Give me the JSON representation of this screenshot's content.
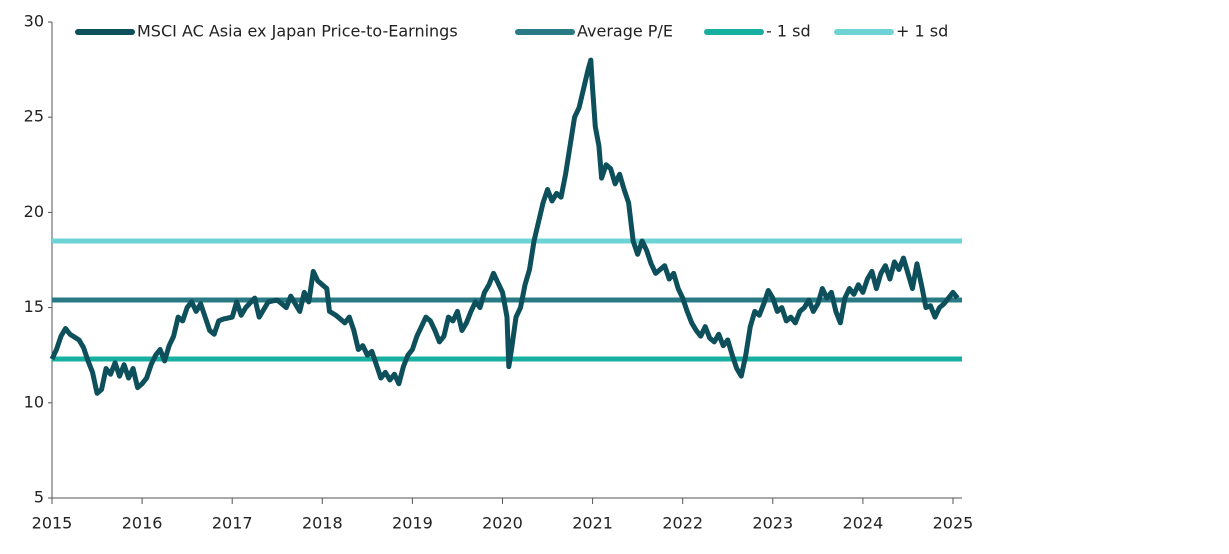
{
  "chart_data": {
    "type": "line",
    "xlim": [
      2015,
      2025.1
    ],
    "xticks": [
      2015,
      2016,
      2017,
      2018,
      2019,
      2020,
      2021,
      2022,
      2023,
      2024,
      2025
    ],
    "ylim": [
      5,
      30
    ],
    "yticks": [
      5,
      10,
      15,
      20,
      25,
      30
    ],
    "grid": false,
    "series": [
      {
        "name": "MSCI AC Asia ex Japan Price-to-Earnings",
        "color": "#0d4f5a",
        "x": [
          2015.0,
          2015.05,
          2015.1,
          2015.15,
          2015.2,
          2015.3,
          2015.35,
          2015.4,
          2015.45,
          2015.5,
          2015.55,
          2015.6,
          2015.65,
          2015.7,
          2015.75,
          2015.8,
          2015.85,
          2015.9,
          2015.95,
          2016.0,
          2016.05,
          2016.1,
          2016.15,
          2016.2,
          2016.25,
          2016.3,
          2016.35,
          2016.4,
          2016.45,
          2016.5,
          2016.55,
          2016.6,
          2016.65,
          2016.7,
          2016.75,
          2016.8,
          2016.85,
          2016.9,
          2017.0,
          2017.05,
          2017.1,
          2017.15,
          2017.25,
          2017.3,
          2017.4,
          2017.5,
          2017.6,
          2017.65,
          2017.7,
          2017.75,
          2017.8,
          2017.85,
          2017.9,
          2017.95,
          2018.05,
          2018.08,
          2018.15,
          2018.25,
          2018.3,
          2018.35,
          2018.4,
          2018.45,
          2018.5,
          2018.55,
          2018.6,
          2018.65,
          2018.7,
          2018.75,
          2018.8,
          2018.85,
          2018.9,
          2018.95,
          2019.0,
          2019.05,
          2019.1,
          2019.15,
          2019.2,
          2019.25,
          2019.3,
          2019.35,
          2019.4,
          2019.45,
          2019.5,
          2019.55,
          2019.6,
          2019.65,
          2019.7,
          2019.75,
          2019.8,
          2019.85,
          2019.9,
          2019.95,
          2020.0,
          2020.05,
          2020.07,
          2020.1,
          2020.15,
          2020.2,
          2020.25,
          2020.3,
          2020.35,
          2020.4,
          2020.45,
          2020.5,
          2020.55,
          2020.6,
          2020.65,
          2020.7,
          2020.75,
          2020.8,
          2020.85,
          2020.9,
          2020.95,
          2020.98,
          2021.0,
          2021.03,
          2021.07,
          2021.1,
          2021.15,
          2021.2,
          2021.25,
          2021.3,
          2021.35,
          2021.4,
          2021.45,
          2021.5,
          2021.55,
          2021.6,
          2021.65,
          2021.7,
          2021.75,
          2021.8,
          2021.85,
          2021.9,
          2021.95,
          2022.0,
          2022.05,
          2022.1,
          2022.15,
          2022.2,
          2022.25,
          2022.3,
          2022.35,
          2022.4,
          2022.45,
          2022.5,
          2022.55,
          2022.6,
          2022.65,
          2022.7,
          2022.75,
          2022.8,
          2022.85,
          2022.9,
          2022.95,
          2023.0,
          2023.05,
          2023.1,
          2023.15,
          2023.2,
          2023.25,
          2023.3,
          2023.35,
          2023.4,
          2023.45,
          2023.5,
          2023.55,
          2023.6,
          2023.65,
          2023.7,
          2023.75,
          2023.8,
          2023.85,
          2023.9,
          2023.95,
          2024.0,
          2024.05,
          2024.1,
          2024.15,
          2024.2,
          2024.25,
          2024.3,
          2024.35,
          2024.4,
          2024.45,
          2024.5,
          2024.55,
          2024.6,
          2024.65,
          2024.7,
          2024.75,
          2024.8,
          2024.85,
          2024.9,
          2024.95,
          2025.0,
          2025.05
        ],
        "values": [
          12.3,
          12.8,
          13.5,
          13.9,
          13.6,
          13.3,
          12.9,
          12.2,
          11.6,
          10.5,
          10.7,
          11.8,
          11.5,
          12.1,
          11.4,
          12.0,
          11.3,
          11.8,
          10.8,
          11.0,
          11.3,
          12.0,
          12.5,
          12.8,
          12.2,
          13.0,
          13.5,
          14.5,
          14.3,
          15.0,
          15.3,
          14.8,
          15.2,
          14.5,
          13.8,
          13.6,
          14.3,
          14.4,
          14.5,
          15.3,
          14.6,
          15.0,
          15.5,
          14.5,
          15.3,
          15.4,
          15.0,
          15.6,
          15.2,
          14.8,
          15.8,
          15.3,
          16.9,
          16.4,
          16.0,
          14.8,
          14.6,
          14.2,
          14.5,
          13.8,
          12.8,
          13.0,
          12.5,
          12.7,
          12.0,
          11.3,
          11.6,
          11.2,
          11.5,
          11.0,
          11.9,
          12.5,
          12.8,
          13.5,
          14.0,
          14.5,
          14.3,
          13.8,
          13.2,
          13.5,
          14.5,
          14.3,
          14.8,
          13.8,
          14.2,
          14.8,
          15.3,
          15.0,
          15.8,
          16.2,
          16.8,
          16.3,
          15.8,
          14.5,
          11.9,
          12.8,
          14.5,
          15.0,
          16.2,
          17.0,
          18.5,
          19.5,
          20.5,
          21.2,
          20.6,
          21.0,
          20.8,
          22.0,
          23.5,
          25.0,
          25.5,
          26.5,
          27.5,
          28.0,
          26.5,
          24.5,
          23.5,
          21.8,
          22.5,
          22.3,
          21.5,
          22.0,
          21.2,
          20.5,
          18.5,
          17.8,
          18.5,
          18.0,
          17.3,
          16.8,
          17.0,
          17.2,
          16.5,
          16.8,
          16.0,
          15.5,
          14.8,
          14.2,
          13.8,
          13.5,
          14.0,
          13.4,
          13.2,
          13.6,
          13.0,
          13.3,
          12.5,
          11.8,
          11.4,
          12.5,
          14.0,
          14.8,
          14.6,
          15.2,
          15.9,
          15.5,
          14.8,
          15.0,
          14.3,
          14.5,
          14.2,
          14.8,
          15.0,
          15.4,
          14.8,
          15.2,
          16.0,
          15.5,
          15.8,
          14.8,
          14.2,
          15.5,
          16.0,
          15.7,
          16.2,
          15.8,
          16.5,
          16.9,
          16.0,
          16.8,
          17.2,
          16.5,
          17.4,
          17.0,
          17.6,
          16.8,
          16.0,
          17.3,
          16.2,
          15.0,
          15.1,
          14.5,
          15.0,
          15.2,
          15.5,
          15.8,
          15.5
        ]
      },
      {
        "name": "Average P/E",
        "color": "#2a7a86",
        "x": [
          2015,
          2025.1
        ],
        "values": [
          15.4,
          15.4
        ]
      },
      {
        "name": "- 1 sd",
        "color": "#17b0a0",
        "x": [
          2015,
          2025.1
        ],
        "values": [
          12.3,
          12.3
        ]
      },
      {
        "name": "+ 1 sd",
        "color": "#6dd3d4",
        "x": [
          2015,
          2025.1
        ],
        "values": [
          18.5,
          18.5
        ]
      }
    ]
  }
}
